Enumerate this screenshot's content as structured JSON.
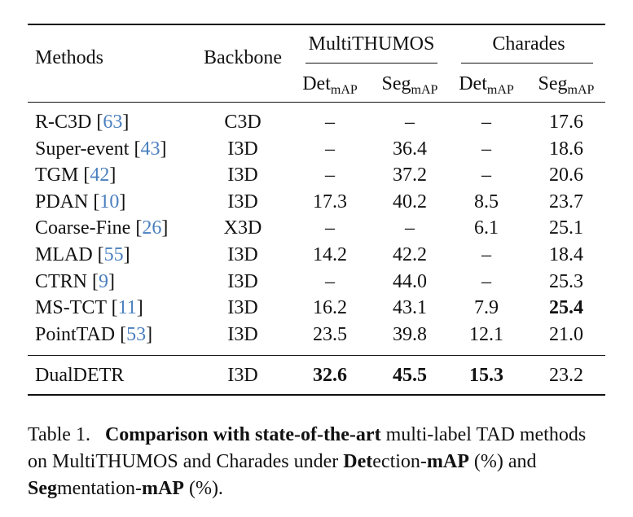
{
  "table": {
    "headers": {
      "methods": "Methods",
      "backbone": "Backbone",
      "group1": "MultiTHUMOS",
      "group2": "Charades",
      "det": "Det",
      "seg": "Seg",
      "sub": "mAP"
    },
    "rows": [
      {
        "method": "R-C3D",
        "ref": "63",
        "backbone": "C3D",
        "mt_det": "–",
        "mt_seg": "–",
        "ch_det": "–",
        "ch_seg": "17.6"
      },
      {
        "method": "Super-event",
        "ref": "43",
        "backbone": "I3D",
        "mt_det": "–",
        "mt_seg": "36.4",
        "ch_det": "–",
        "ch_seg": "18.6"
      },
      {
        "method": "TGM",
        "ref": "42",
        "backbone": "I3D",
        "mt_det": "–",
        "mt_seg": "37.2",
        "ch_det": "–",
        "ch_seg": "20.6"
      },
      {
        "method": "PDAN",
        "ref": "10",
        "backbone": "I3D",
        "mt_det": "17.3",
        "mt_seg": "40.2",
        "ch_det": "8.5",
        "ch_seg": "23.7"
      },
      {
        "method": "Coarse-Fine",
        "ref": "26",
        "backbone": "X3D",
        "mt_det": "–",
        "mt_seg": "–",
        "ch_det": "6.1",
        "ch_seg": "25.1"
      },
      {
        "method": "MLAD",
        "ref": "55",
        "backbone": "I3D",
        "mt_det": "14.2",
        "mt_seg": "42.2",
        "ch_det": "–",
        "ch_seg": "18.4"
      },
      {
        "method": "CTRN",
        "ref": "9",
        "backbone": "I3D",
        "mt_det": "–",
        "mt_seg": "44.0",
        "ch_det": "–",
        "ch_seg": "25.3"
      },
      {
        "method": "MS-TCT",
        "ref": "11",
        "backbone": "I3D",
        "mt_det": "16.2",
        "mt_seg": "43.1",
        "ch_det": "7.9",
        "ch_seg": "25.4",
        "bold": [
          "ch_seg"
        ]
      },
      {
        "method": "PointTAD",
        "ref": "53",
        "backbone": "I3D",
        "mt_det": "23.5",
        "mt_seg": "39.8",
        "ch_det": "12.1",
        "ch_seg": "21.0"
      }
    ],
    "final_row": {
      "method": "DualDETR",
      "backbone": "I3D",
      "mt_det": "32.6",
      "mt_seg": "45.5",
      "ch_det": "15.3",
      "ch_seg": "23.2",
      "bold": [
        "mt_det",
        "mt_seg",
        "ch_det"
      ]
    }
  },
  "caption": {
    "label": "Table 1.",
    "bold1": "Comparison with state-of-the-art",
    "text1": " multi-label TAD methods on MultiTHUMOS and Charades under ",
    "bold2": "Det",
    "text2": "ection-",
    "bold3": "mAP",
    "text3": " (%) and ",
    "bold4": "Seg",
    "text4": "mentation-",
    "bold5": "mAP",
    "text5": " (%)."
  }
}
